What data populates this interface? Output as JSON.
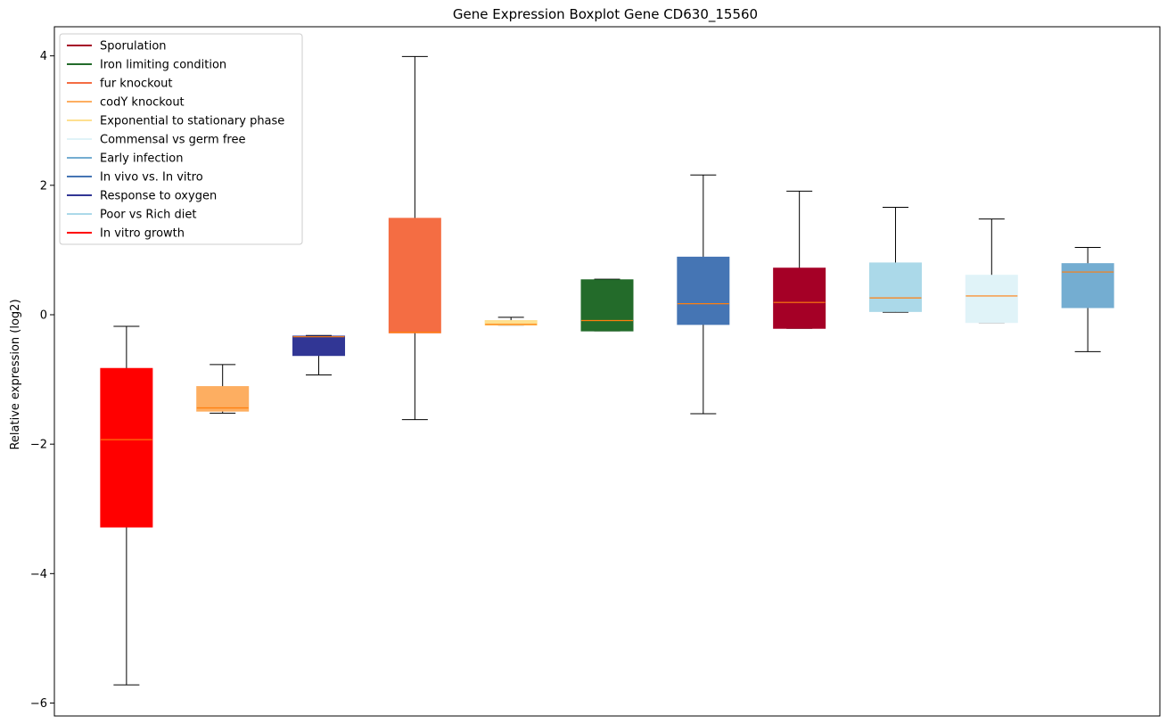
{
  "chart_data": {
    "type": "boxplot",
    "title": "Gene Expression Boxplot Gene CD630_15560",
    "xlabel": "",
    "ylabel": "Relative expression (log2)",
    "ylim": [
      -6.2,
      4.45
    ],
    "yticks": [
      -6,
      -4,
      -2,
      0,
      2,
      4
    ],
    "ytick_labels": [
      "−6",
      "−4",
      "−2",
      "0",
      "2",
      "4"
    ],
    "legend_position": "top-left",
    "median_color": "#ff7f0e",
    "series": [
      {
        "name": "In vitro growth",
        "color": "#ff0000",
        "whisker_low": -5.72,
        "q1": -3.28,
        "median": -1.93,
        "q3": -0.83,
        "whisker_high": -0.18
      },
      {
        "name": "codY knockout",
        "color": "#fdae61",
        "whisker_low": -1.52,
        "q1": -1.49,
        "median": -1.44,
        "q3": -1.11,
        "whisker_high": -0.77
      },
      {
        "name": "Response to oxygen",
        "color": "#313695",
        "whisker_low": -0.93,
        "q1": -0.63,
        "median": -0.34,
        "q3": -0.33,
        "whisker_high": -0.32
      },
      {
        "name": "fur knockout",
        "color": "#f46d43",
        "whisker_low": -1.62,
        "q1": -0.28,
        "median": -0.27,
        "q3": 1.49,
        "whisker_high": 3.99
      },
      {
        "name": "Exponential to stationary phase",
        "color": "#fee090",
        "whisker_low": -0.16,
        "q1": -0.16,
        "median": -0.15,
        "q3": -0.09,
        "whisker_high": -0.04
      },
      {
        "name": "Iron limiting condition",
        "color": "#236b2a",
        "whisker_low": -0.25,
        "q1": -0.25,
        "median": -0.09,
        "q3": 0.54,
        "whisker_high": 0.55
      },
      {
        "name": "In vivo vs. In vitro",
        "color": "#4575b4",
        "whisker_low": -1.53,
        "q1": -0.15,
        "median": 0.17,
        "q3": 0.89,
        "whisker_high": 2.16
      },
      {
        "name": "Sporulation",
        "color": "#a50026",
        "whisker_low": -0.21,
        "q1": -0.21,
        "median": 0.19,
        "q3": 0.72,
        "whisker_high": 1.91
      },
      {
        "name": "Poor vs Rich diet",
        "color": "#abd9e9",
        "whisker_low": 0.04,
        "q1": 0.05,
        "median": 0.26,
        "q3": 0.8,
        "whisker_high": 1.66
      },
      {
        "name": "Commensal vs germ free",
        "color": "#e0f3f8",
        "whisker_low": -0.12,
        "q1": -0.12,
        "median": 0.29,
        "q3": 0.61,
        "whisker_high": 1.48
      },
      {
        "name": "Early infection",
        "color": "#74add1",
        "whisker_low": -0.57,
        "q1": 0.11,
        "median": 0.66,
        "q3": 0.79,
        "whisker_high": 1.04
      }
    ],
    "legend": [
      {
        "label": "Sporulation",
        "color": "#a50026"
      },
      {
        "label": "Iron limiting condition",
        "color": "#236b2a"
      },
      {
        "label": "fur knockout",
        "color": "#f46d43"
      },
      {
        "label": "codY knockout",
        "color": "#fdae61"
      },
      {
        "label": "Exponential to stationary phase",
        "color": "#fee090"
      },
      {
        "label": "Commensal vs germ free",
        "color": "#e0f3f8"
      },
      {
        "label": "Early infection",
        "color": "#74add1"
      },
      {
        "label": "In vivo vs. In vitro",
        "color": "#4575b4"
      },
      {
        "label": "Response to oxygen",
        "color": "#313695"
      },
      {
        "label": "Poor vs Rich diet",
        "color": "#abd9e9"
      },
      {
        "label": "In vitro growth",
        "color": "#ff0000"
      }
    ]
  }
}
